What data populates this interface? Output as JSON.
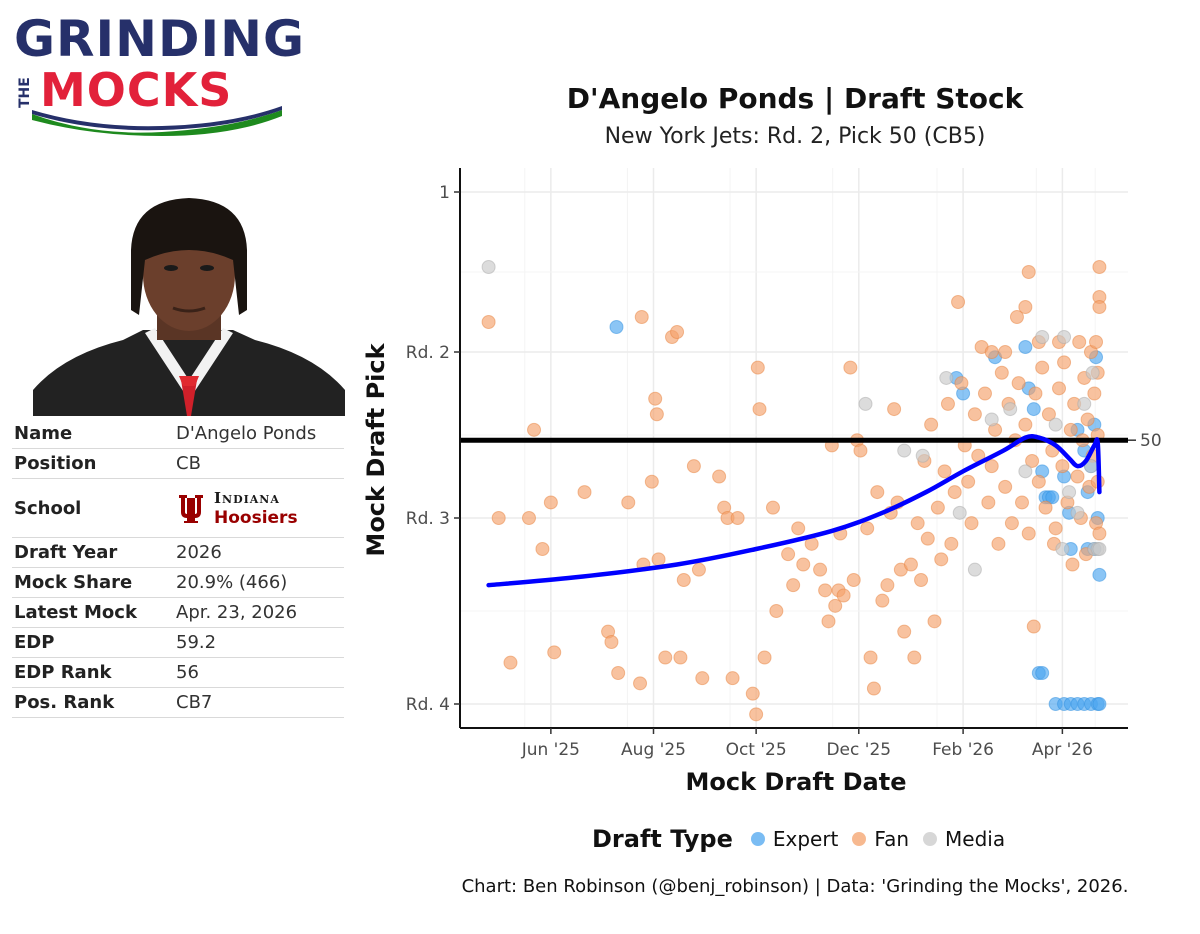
{
  "logo": {
    "line1": "GRINDING",
    "line_the": "THE",
    "line2": "MOCKS"
  },
  "title": "D'Angelo Ponds | Draft Stock",
  "subtitle": "New York Jets: Rd. 2, Pick 50 (CB5)",
  "caption": "Chart: Ben Robinson (@benj_robinson) | Data: 'Grinding the Mocks', 2026.",
  "info": {
    "name_label": "Name",
    "name": "D'Angelo Ponds",
    "position_label": "Position",
    "position": "CB",
    "school_label": "School",
    "school_line1": "Indiana",
    "school_line2": "Hoosiers",
    "year_label": "Draft Year",
    "year": "2026",
    "share_label": "Mock Share",
    "share": "20.9% (466)",
    "latest_label": "Latest Mock",
    "latest": "Apr. 23, 2026",
    "edp_label": "EDP",
    "edp": "59.2",
    "edp_rank_label": "EDP Rank",
    "edp_rank": "56",
    "pos_rank_label": "Pos. Rank",
    "pos_rank": "CB7"
  },
  "legend": {
    "title": "Draft Type",
    "expert": "Expert",
    "fan": "Fan",
    "media": "Media"
  },
  "colors": {
    "expert": "#4da6ef",
    "fan": "#f4a26b",
    "fan_stroke": "#e8843f",
    "media": "#c9c9c9",
    "trend": "#0000ff",
    "reference": "#000000"
  },
  "chart_data": {
    "type": "scatter",
    "title": "D'Angelo Ponds | Draft Stock",
    "subtitle": "New York Jets: Rd. 2, Pick 50 (CB5)",
    "xlabel": "Mock Draft Date",
    "ylabel": "Mock Draft Pick",
    "x_ticks": [
      "Jun '25",
      "Aug '25",
      "Oct '25",
      "Dec '25",
      "Feb '26",
      "Apr '26"
    ],
    "x_tick_dates": [
      "2025-06-01",
      "2025-08-01",
      "2025-10-01",
      "2025-12-01",
      "2026-02-01",
      "2026-04-01"
    ],
    "y_ticks": [
      "1",
      "Rd. 2",
      "Rd. 3",
      "Rd. 4"
    ],
    "y_tick_values": [
      1,
      33,
      65,
      101
    ],
    "y_reversed": true,
    "xlim": [
      "2025-04-08",
      "2026-05-10"
    ],
    "ylim": [
      1,
      105
    ],
    "reference_line": {
      "value": 50,
      "label": "50"
    },
    "grid": true,
    "legend_position": "bottom",
    "series": [
      {
        "name": "Expert",
        "points": [
          [
            "2025-07-10",
            28
          ],
          [
            "2026-01-28",
            38
          ],
          [
            "2026-02-01",
            41
          ],
          [
            "2026-02-20",
            34
          ],
          [
            "2026-03-10",
            32
          ],
          [
            "2026-03-12",
            40
          ],
          [
            "2026-03-15",
            44
          ],
          [
            "2026-03-20",
            56
          ],
          [
            "2026-03-22",
            61
          ],
          [
            "2026-03-24",
            61
          ],
          [
            "2026-03-26",
            61
          ],
          [
            "2026-04-02",
            57
          ],
          [
            "2026-04-05",
            64
          ],
          [
            "2026-04-10",
            48
          ],
          [
            "2026-04-14",
            52
          ],
          [
            "2026-04-16",
            60
          ],
          [
            "2026-04-18",
            55
          ],
          [
            "2026-04-20",
            47
          ],
          [
            "2026-04-21",
            34
          ],
          [
            "2026-04-22",
            65
          ],
          [
            "2026-04-23",
            76
          ],
          [
            "2026-03-18",
            95
          ],
          [
            "2026-03-20",
            95
          ],
          [
            "2026-03-28",
            101
          ],
          [
            "2026-04-02",
            101
          ],
          [
            "2026-04-06",
            101
          ],
          [
            "2026-04-10",
            101
          ],
          [
            "2026-04-14",
            101
          ],
          [
            "2026-04-18",
            101
          ],
          [
            "2026-04-22",
            101
          ],
          [
            "2026-04-23",
            101
          ],
          [
            "2026-04-16",
            71
          ],
          [
            "2026-04-06",
            71
          ],
          [
            "2026-04-20",
            71
          ]
        ]
      },
      {
        "name": "Fan",
        "points": [
          [
            "2025-04-25",
            27
          ],
          [
            "2025-05-01",
            65
          ],
          [
            "2025-05-08",
            93
          ],
          [
            "2025-05-19",
            65
          ],
          [
            "2025-05-22",
            48
          ],
          [
            "2025-05-27",
            71
          ],
          [
            "2025-06-01",
            62
          ],
          [
            "2025-06-03",
            91
          ],
          [
            "2025-06-21",
            60
          ],
          [
            "2025-07-05",
            87
          ],
          [
            "2025-07-07",
            89
          ],
          [
            "2025-07-11",
            95
          ],
          [
            "2025-07-17",
            62
          ],
          [
            "2025-07-24",
            97
          ],
          [
            "2025-07-25",
            26
          ],
          [
            "2025-07-26",
            74
          ],
          [
            "2025-07-31",
            58
          ],
          [
            "2025-08-02",
            42
          ],
          [
            "2025-08-03",
            45
          ],
          [
            "2025-08-04",
            73
          ],
          [
            "2025-08-08",
            92
          ],
          [
            "2025-08-12",
            30
          ],
          [
            "2025-08-15",
            29
          ],
          [
            "2025-08-17",
            92
          ],
          [
            "2025-08-19",
            77
          ],
          [
            "2025-08-25",
            55
          ],
          [
            "2025-08-28",
            75
          ],
          [
            "2025-08-30",
            96
          ],
          [
            "2025-09-09",
            57
          ],
          [
            "2025-09-12",
            63
          ],
          [
            "2025-09-14",
            65
          ],
          [
            "2025-09-17",
            96
          ],
          [
            "2025-09-20",
            65
          ],
          [
            "2025-09-29",
            99
          ],
          [
            "2025-10-01",
            103
          ],
          [
            "2025-10-02",
            36
          ],
          [
            "2025-10-03",
            44
          ],
          [
            "2025-10-06",
            92
          ],
          [
            "2025-10-11",
            63
          ],
          [
            "2025-10-13",
            83
          ],
          [
            "2025-10-20",
            72
          ],
          [
            "2025-10-23",
            78
          ],
          [
            "2025-10-26",
            67
          ],
          [
            "2025-10-29",
            74
          ],
          [
            "2025-11-03",
            70
          ],
          [
            "2025-11-08",
            75
          ],
          [
            "2025-11-11",
            79
          ],
          [
            "2025-11-13",
            85
          ],
          [
            "2025-11-15",
            51
          ],
          [
            "2025-11-17",
            82
          ],
          [
            "2025-11-19",
            79
          ],
          [
            "2025-11-20",
            68
          ],
          [
            "2025-11-22",
            80
          ],
          [
            "2025-11-26",
            36
          ],
          [
            "2025-11-28",
            77
          ],
          [
            "2025-11-30",
            50
          ],
          [
            "2025-12-02",
            52
          ],
          [
            "2025-12-06",
            67
          ],
          [
            "2025-12-08",
            92
          ],
          [
            "2025-12-10",
            98
          ],
          [
            "2025-12-12",
            60
          ],
          [
            "2025-12-15",
            81
          ],
          [
            "2025-12-18",
            78
          ],
          [
            "2025-12-20",
            64
          ],
          [
            "2025-12-22",
            44
          ],
          [
            "2025-12-24",
            62
          ],
          [
            "2025-12-26",
            75
          ],
          [
            "2025-12-28",
            87
          ],
          [
            "2026-01-01",
            74
          ],
          [
            "2026-01-03",
            92
          ],
          [
            "2026-01-05",
            66
          ],
          [
            "2026-01-07",
            77
          ],
          [
            "2026-01-09",
            54
          ],
          [
            "2026-01-11",
            69
          ],
          [
            "2026-01-13",
            47
          ],
          [
            "2026-01-15",
            85
          ],
          [
            "2026-01-17",
            63
          ],
          [
            "2026-01-19",
            73
          ],
          [
            "2026-01-21",
            56
          ],
          [
            "2026-01-23",
            43
          ],
          [
            "2026-01-25",
            70
          ],
          [
            "2026-01-27",
            60
          ],
          [
            "2026-01-29",
            23
          ],
          [
            "2026-01-31",
            39
          ],
          [
            "2026-02-02",
            51
          ],
          [
            "2026-02-04",
            58
          ],
          [
            "2026-02-06",
            66
          ],
          [
            "2026-02-08",
            45
          ],
          [
            "2026-02-10",
            53
          ],
          [
            "2026-02-12",
            32
          ],
          [
            "2026-02-14",
            41
          ],
          [
            "2026-02-16",
            62
          ],
          [
            "2026-02-18",
            55
          ],
          [
            "2026-02-20",
            48
          ],
          [
            "2026-02-22",
            70
          ],
          [
            "2026-02-24",
            37
          ],
          [
            "2026-02-26",
            59
          ],
          [
            "2026-02-28",
            43
          ],
          [
            "2026-03-02",
            66
          ],
          [
            "2026-03-04",
            50
          ],
          [
            "2026-03-05",
            26
          ],
          [
            "2026-03-06",
            39
          ],
          [
            "2026-03-08",
            62
          ],
          [
            "2026-03-10",
            47
          ],
          [
            "2026-03-12",
            68
          ],
          [
            "2026-03-14",
            54
          ],
          [
            "2026-03-15",
            86
          ],
          [
            "2026-03-16",
            41
          ],
          [
            "2026-03-18",
            58
          ],
          [
            "2026-03-20",
            36
          ],
          [
            "2026-03-22",
            63
          ],
          [
            "2026-03-24",
            45
          ],
          [
            "2026-03-26",
            52
          ],
          [
            "2026-03-28",
            67
          ],
          [
            "2026-03-30",
            40
          ],
          [
            "2026-04-01",
            55
          ],
          [
            "2026-04-02",
            35
          ],
          [
            "2026-04-04",
            62
          ],
          [
            "2026-04-06",
            48
          ],
          [
            "2026-04-07",
            74
          ],
          [
            "2026-04-08",
            43
          ],
          [
            "2026-04-10",
            57
          ],
          [
            "2026-04-11",
            31
          ],
          [
            "2026-04-12",
            65
          ],
          [
            "2026-04-13",
            50
          ],
          [
            "2026-04-14",
            38
          ],
          [
            "2026-04-15",
            72
          ],
          [
            "2026-04-16",
            46
          ],
          [
            "2026-04-17",
            59
          ],
          [
            "2026-04-18",
            33
          ],
          [
            "2026-04-19",
            53
          ],
          [
            "2026-04-20",
            41
          ],
          [
            "2026-04-21",
            66
          ],
          [
            "2026-04-22",
            49
          ],
          [
            "2026-04-23",
            16
          ],
          [
            "2026-04-23",
            22
          ],
          [
            "2026-04-23",
            24
          ],
          [
            "2026-04-22",
            37
          ],
          [
            "2026-04-22",
            58
          ],
          [
            "2026-04-23",
            68
          ],
          [
            "2026-04-21",
            31
          ],
          [
            "2026-03-30",
            31
          ],
          [
            "2026-03-18",
            31
          ],
          [
            "2026-03-12",
            17
          ],
          [
            "2026-03-10",
            24
          ],
          [
            "2026-02-18",
            33
          ],
          [
            "2026-02-26",
            33
          ],
          [
            "2026-03-27",
            70
          ]
        ]
      },
      {
        "name": "Media",
        "points": [
          [
            "2025-04-25",
            16
          ],
          [
            "2025-12-05",
            43
          ],
          [
            "2025-12-28",
            52
          ],
          [
            "2026-01-08",
            53
          ],
          [
            "2026-01-22",
            38
          ],
          [
            "2026-01-30",
            64
          ],
          [
            "2026-02-08",
            75
          ],
          [
            "2026-02-18",
            46
          ],
          [
            "2026-03-01",
            44
          ],
          [
            "2026-03-10",
            56
          ],
          [
            "2026-03-20",
            30
          ],
          [
            "2026-03-28",
            47
          ],
          [
            "2026-04-01",
            71
          ],
          [
            "2026-04-05",
            60
          ],
          [
            "2026-04-10",
            64
          ],
          [
            "2026-04-14",
            43
          ],
          [
            "2026-04-18",
            55
          ],
          [
            "2026-04-20",
            71
          ],
          [
            "2026-04-22",
            71
          ],
          [
            "2026-04-23",
            71
          ],
          [
            "2026-04-02",
            30
          ],
          [
            "2026-04-19",
            37
          ]
        ]
      }
    ],
    "trend": [
      [
        "2025-04-25",
        78
      ],
      [
        "2025-06-15",
        76.5
      ],
      [
        "2025-08-15",
        74
      ],
      [
        "2025-10-01",
        71
      ],
      [
        "2025-11-15",
        67.5
      ],
      [
        "2025-12-15",
        64
      ],
      [
        "2026-01-10",
        60
      ],
      [
        "2026-02-01",
        56
      ],
      [
        "2026-02-25",
        52
      ],
      [
        "2026-03-10",
        49.5
      ],
      [
        "2026-03-18",
        49.5
      ],
      [
        "2026-03-28",
        51
      ],
      [
        "2026-04-05",
        53.5
      ],
      [
        "2026-04-10",
        55
      ],
      [
        "2026-04-15",
        54
      ],
      [
        "2026-04-20",
        51
      ],
      [
        "2026-04-22",
        50.5
      ],
      [
        "2026-04-23",
        60
      ]
    ]
  }
}
